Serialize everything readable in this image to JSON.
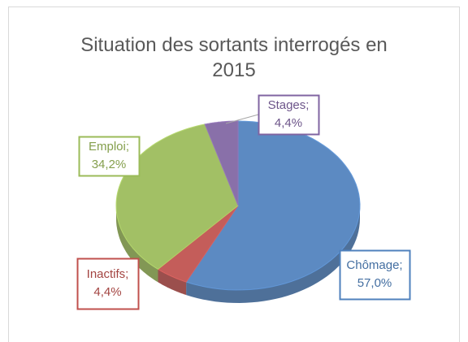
{
  "chart_data": {
    "type": "pie",
    "title": "Situation des sortants interrogés en 2015",
    "categories": [
      "Chômage;",
      "Inactifs;",
      "Emploi;",
      "Stages;"
    ],
    "values": [
      57.0,
      4.4,
      34.2,
      4.4
    ],
    "value_labels": [
      "57,0%",
      "4,4%",
      "34,2%",
      "4,4%"
    ],
    "colors": [
      "#4f81bd",
      "#c0504d",
      "#9bbb59",
      "#8064a2"
    ]
  }
}
